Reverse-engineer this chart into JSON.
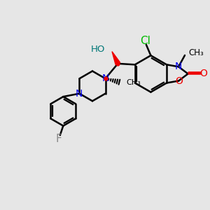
{
  "bg_color": "#e6e6e6",
  "bond_color": "#000000",
  "bond_width": 1.8,
  "cl_color": "#00bb00",
  "n_color": "#0000ee",
  "o_color": "#ee0000",
  "f_color": "#888888",
  "ho_color": "#007777",
  "stereo_color": "#ee0000",
  "figsize": [
    3.0,
    3.0
  ],
  "dpi": 100,
  "xlim": [
    0,
    10
  ],
  "ylim": [
    0,
    10
  ]
}
